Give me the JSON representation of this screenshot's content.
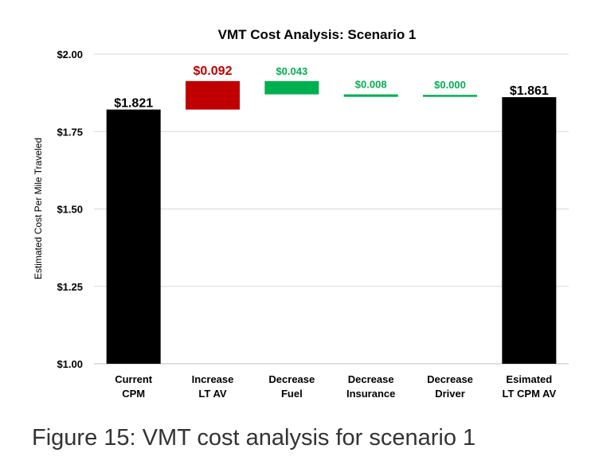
{
  "chart_data": {
    "type": "waterfall",
    "title": "VMT Cost Analysis: Scenario 1",
    "ylabel": "Estimated Cost Per Mile Traveled",
    "xlabel": "",
    "ylim": [
      1.0,
      2.0
    ],
    "yticks": [
      "$1.00",
      "$1.25",
      "$1.50",
      "$1.75",
      "$2.00"
    ],
    "ytick_values": [
      1.0,
      1.25,
      1.5,
      1.75,
      2.0
    ],
    "grid": true,
    "legend": "none",
    "categories": [
      [
        "Current",
        "CPM"
      ],
      [
        "Increase",
        "LT AV"
      ],
      [
        "Decrease",
        "Fuel"
      ],
      [
        "Decrease",
        "Insurance"
      ],
      [
        "Decrease",
        "Driver"
      ],
      [
        "Esimated",
        "LT CPM AV"
      ]
    ],
    "bars": [
      {
        "kind": "total",
        "low": 1.0,
        "high": 1.821,
        "label": "$1.821",
        "color": "#000000",
        "label_color": "#000000"
      },
      {
        "kind": "increase",
        "low": 1.821,
        "high": 1.913,
        "label": "$0.092",
        "color": "#c00000",
        "label_color": "#c00000"
      },
      {
        "kind": "decrease",
        "low": 1.87,
        "high": 1.913,
        "label": "$0.043",
        "color": "#00b050",
        "label_color": "#00b050"
      },
      {
        "kind": "decrease",
        "low": 1.862,
        "high": 1.87,
        "label": "$0.008",
        "color": "#00b050",
        "label_color": "#00b050"
      },
      {
        "kind": "decrease",
        "low": 1.862,
        "high": 1.862,
        "label": "$0.000",
        "color": "#00b050",
        "label_color": "#00b050"
      },
      {
        "kind": "total",
        "low": 1.0,
        "high": 1.861,
        "label": "$1.861",
        "color": "#000000",
        "label_color": "#000000"
      }
    ]
  },
  "caption": "Figure 15: VMT cost analysis for scenario 1"
}
